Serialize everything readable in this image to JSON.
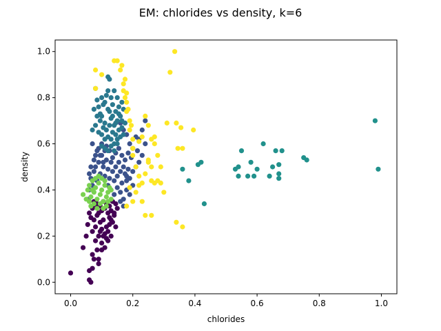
{
  "chart_data": {
    "type": "scatter",
    "title": "EM: chlorides vs density, k=6",
    "xlabel": "chlorides",
    "ylabel": "density",
    "xlim": [
      -0.05,
      1.05
    ],
    "ylim": [
      -0.05,
      1.05
    ],
    "xticks": [
      "0.0",
      "0.2",
      "0.4",
      "0.6",
      "0.8",
      "1.0"
    ],
    "yticks": [
      "0.0",
      "0.2",
      "0.4",
      "0.6",
      "0.8",
      "1.0"
    ],
    "grid": false,
    "legend": "none",
    "series": [
      {
        "color": "#440154",
        "points": [
          [
            0.0,
            0.04
          ],
          [
            0.04,
            0.15
          ],
          [
            0.05,
            0.2
          ],
          [
            0.055,
            0.25
          ],
          [
            0.06,
            0.05
          ],
          [
            0.06,
            0.01
          ],
          [
            0.065,
            0.0
          ],
          [
            0.07,
            0.06
          ],
          [
            0.07,
            0.12
          ],
          [
            0.075,
            0.1
          ],
          [
            0.08,
            0.18
          ],
          [
            0.085,
            0.14
          ],
          [
            0.09,
            0.1
          ],
          [
            0.09,
            0.08
          ],
          [
            0.095,
            0.22
          ],
          [
            0.1,
            0.17
          ],
          [
            0.1,
            0.14
          ],
          [
            0.105,
            0.2
          ],
          [
            0.11,
            0.15
          ],
          [
            0.115,
            0.19
          ],
          [
            0.12,
            0.18
          ],
          [
            0.125,
            0.25
          ],
          [
            0.13,
            0.2
          ],
          [
            0.06,
            0.3
          ],
          [
            0.065,
            0.28
          ],
          [
            0.07,
            0.32
          ],
          [
            0.075,
            0.27
          ],
          [
            0.08,
            0.33
          ],
          [
            0.085,
            0.29
          ],
          [
            0.09,
            0.3
          ],
          [
            0.095,
            0.26
          ],
          [
            0.1,
            0.31
          ],
          [
            0.105,
            0.27
          ],
          [
            0.11,
            0.32
          ],
          [
            0.115,
            0.24
          ],
          [
            0.12,
            0.3
          ],
          [
            0.125,
            0.28
          ],
          [
            0.13,
            0.31
          ],
          [
            0.135,
            0.26
          ],
          [
            0.14,
            0.29
          ],
          [
            0.145,
            0.24
          ],
          [
            0.07,
            0.22
          ],
          [
            0.08,
            0.24
          ],
          [
            0.09,
            0.2
          ],
          [
            0.1,
            0.23
          ],
          [
            0.11,
            0.21
          ],
          [
            0.12,
            0.22
          ],
          [
            0.13,
            0.27
          ],
          [
            0.14,
            0.3
          ],
          [
            0.15,
            0.32
          ],
          [
            0.075,
            0.35
          ],
          [
            0.085,
            0.34
          ],
          [
            0.095,
            0.33
          ],
          [
            0.105,
            0.35
          ],
          [
            0.115,
            0.34
          ],
          [
            0.125,
            0.33
          ],
          [
            0.135,
            0.35
          ],
          [
            0.145,
            0.34
          ]
        ]
      },
      {
        "color": "#3b528b",
        "points": [
          [
            0.065,
            0.45
          ],
          [
            0.07,
            0.42
          ],
          [
            0.075,
            0.48
          ],
          [
            0.08,
            0.5
          ],
          [
            0.085,
            0.44
          ],
          [
            0.09,
            0.52
          ],
          [
            0.095,
            0.47
          ],
          [
            0.1,
            0.55
          ],
          [
            0.105,
            0.5
          ],
          [
            0.11,
            0.46
          ],
          [
            0.115,
            0.53
          ],
          [
            0.12,
            0.49
          ],
          [
            0.125,
            0.45
          ],
          [
            0.13,
            0.52
          ],
          [
            0.135,
            0.48
          ],
          [
            0.14,
            0.44
          ],
          [
            0.145,
            0.5
          ],
          [
            0.15,
            0.46
          ],
          [
            0.155,
            0.52
          ],
          [
            0.16,
            0.48
          ],
          [
            0.165,
            0.43
          ],
          [
            0.17,
            0.5
          ],
          [
            0.175,
            0.47
          ],
          [
            0.18,
            0.44
          ],
          [
            0.185,
            0.49
          ],
          [
            0.19,
            0.45
          ],
          [
            0.07,
            0.6
          ],
          [
            0.08,
            0.55
          ],
          [
            0.09,
            0.58
          ],
          [
            0.1,
            0.6
          ],
          [
            0.11,
            0.57
          ],
          [
            0.12,
            0.42
          ],
          [
            0.13,
            0.4
          ],
          [
            0.14,
            0.38
          ],
          [
            0.15,
            0.41
          ],
          [
            0.16,
            0.39
          ],
          [
            0.17,
            0.36
          ],
          [
            0.18,
            0.4
          ],
          [
            0.19,
            0.38
          ],
          [
            0.2,
            0.42
          ],
          [
            0.17,
            0.33
          ],
          [
            0.16,
            0.35
          ],
          [
            0.18,
            0.46
          ],
          [
            0.2,
            0.48
          ],
          [
            0.21,
            0.5
          ],
          [
            0.22,
            0.52
          ],
          [
            0.23,
            0.55
          ],
          [
            0.24,
            0.6
          ],
          [
            0.22,
            0.62
          ],
          [
            0.215,
            0.57
          ],
          [
            0.2,
            0.58
          ],
          [
            0.195,
            0.54
          ],
          [
            0.185,
            0.56
          ],
          [
            0.175,
            0.53
          ],
          [
            0.165,
            0.55
          ],
          [
            0.155,
            0.58
          ],
          [
            0.145,
            0.56
          ],
          [
            0.135,
            0.54
          ],
          [
            0.125,
            0.57
          ],
          [
            0.115,
            0.59
          ],
          [
            0.105,
            0.52
          ],
          [
            0.095,
            0.55
          ],
          [
            0.085,
            0.57
          ],
          [
            0.075,
            0.53
          ],
          [
            0.065,
            0.5
          ],
          [
            0.06,
            0.47
          ],
          [
            0.06,
            0.4
          ],
          [
            0.058,
            0.36
          ],
          [
            0.19,
            0.6
          ],
          [
            0.21,
            0.63
          ],
          [
            0.23,
            0.66
          ],
          [
            0.24,
            0.7
          ],
          [
            0.18,
            0.64
          ],
          [
            0.17,
            0.66
          ],
          [
            0.16,
            0.69
          ]
        ]
      },
      {
        "color": "#21918c",
        "points": [
          [
            0.36,
            0.49
          ],
          [
            0.38,
            0.44
          ],
          [
            0.41,
            0.51
          ],
          [
            0.42,
            0.52
          ],
          [
            0.43,
            0.34
          ],
          [
            0.53,
            0.49
          ],
          [
            0.54,
            0.5
          ],
          [
            0.55,
            0.57
          ],
          [
            0.57,
            0.46
          ],
          [
            0.58,
            0.52
          ],
          [
            0.59,
            0.46
          ],
          [
            0.6,
            0.49
          ],
          [
            0.62,
            0.6
          ],
          [
            0.64,
            0.46
          ],
          [
            0.65,
            0.5
          ],
          [
            0.66,
            0.57
          ],
          [
            0.67,
            0.51
          ],
          [
            0.67,
            0.45
          ],
          [
            0.68,
            0.57
          ],
          [
            0.75,
            0.54
          ],
          [
            0.76,
            0.53
          ],
          [
            0.98,
            0.7
          ],
          [
            0.99,
            0.49
          ],
          [
            0.54,
            0.46
          ],
          [
            0.67,
            0.47
          ]
        ]
      },
      {
        "color": "#2a788e",
        "points": [
          [
            0.08,
            0.84
          ],
          [
            0.09,
            0.76
          ],
          [
            0.1,
            0.8
          ],
          [
            0.1,
            0.72
          ],
          [
            0.11,
            0.78
          ],
          [
            0.11,
            0.69
          ],
          [
            0.12,
            0.89
          ],
          [
            0.12,
            0.83
          ],
          [
            0.12,
            0.75
          ],
          [
            0.125,
            0.88
          ],
          [
            0.13,
            0.8
          ],
          [
            0.13,
            0.71
          ],
          [
            0.135,
            0.77
          ],
          [
            0.14,
            0.83
          ],
          [
            0.14,
            0.68
          ],
          [
            0.145,
            0.74
          ],
          [
            0.15,
            0.8
          ],
          [
            0.15,
            0.7
          ],
          [
            0.155,
            0.76
          ],
          [
            0.16,
            0.72
          ],
          [
            0.165,
            0.78
          ],
          [
            0.17,
            0.75
          ],
          [
            0.08,
            0.68
          ],
          [
            0.085,
            0.72
          ],
          [
            0.09,
            0.65
          ],
          [
            0.095,
            0.7
          ],
          [
            0.1,
            0.64
          ],
          [
            0.105,
            0.67
          ],
          [
            0.11,
            0.62
          ],
          [
            0.115,
            0.66
          ],
          [
            0.12,
            0.63
          ],
          [
            0.125,
            0.68
          ],
          [
            0.13,
            0.62
          ],
          [
            0.135,
            0.65
          ],
          [
            0.14,
            0.6
          ],
          [
            0.145,
            0.64
          ],
          [
            0.15,
            0.62
          ],
          [
            0.155,
            0.66
          ],
          [
            0.16,
            0.63
          ],
          [
            0.165,
            0.67
          ],
          [
            0.17,
            0.64
          ],
          [
            0.175,
            0.69
          ],
          [
            0.075,
            0.75
          ],
          [
            0.07,
            0.66
          ],
          [
            0.085,
            0.79
          ],
          [
            0.095,
            0.73
          ],
          [
            0.105,
            0.77
          ],
          [
            0.115,
            0.81
          ],
          [
            0.125,
            0.74
          ],
          [
            0.135,
            0.72
          ],
          [
            0.145,
            0.69
          ],
          [
            0.155,
            0.73
          ],
          [
            0.165,
            0.7
          ],
          [
            0.11,
            0.58
          ],
          [
            0.12,
            0.57
          ],
          [
            0.13,
            0.59
          ],
          [
            0.14,
            0.57
          ],
          [
            0.15,
            0.6
          ],
          [
            0.1,
            0.59
          ]
        ]
      },
      {
        "color": "#7ad151",
        "points": [
          [
            0.04,
            0.38
          ],
          [
            0.05,
            0.36
          ],
          [
            0.055,
            0.4
          ],
          [
            0.06,
            0.42
          ],
          [
            0.065,
            0.37
          ],
          [
            0.07,
            0.44
          ],
          [
            0.075,
            0.39
          ],
          [
            0.08,
            0.41
          ],
          [
            0.085,
            0.36
          ],
          [
            0.09,
            0.43
          ],
          [
            0.095,
            0.38
          ],
          [
            0.1,
            0.4
          ],
          [
            0.105,
            0.35
          ],
          [
            0.11,
            0.42
          ],
          [
            0.115,
            0.37
          ],
          [
            0.12,
            0.39
          ],
          [
            0.125,
            0.41
          ],
          [
            0.13,
            0.36
          ],
          [
            0.065,
            0.33
          ],
          [
            0.075,
            0.34
          ],
          [
            0.085,
            0.32
          ],
          [
            0.095,
            0.34
          ],
          [
            0.105,
            0.32
          ],
          [
            0.115,
            0.33
          ],
          [
            0.08,
            0.45
          ],
          [
            0.09,
            0.46
          ],
          [
            0.1,
            0.45
          ],
          [
            0.11,
            0.44
          ],
          [
            0.07,
            0.4
          ],
          [
            0.06,
            0.35
          ],
          [
            0.12,
            0.35
          ],
          [
            0.13,
            0.4
          ]
        ]
      },
      {
        "color": "#fde725",
        "points": [
          [
            0.08,
            0.92
          ],
          [
            0.08,
            0.84
          ],
          [
            0.1,
            0.9
          ],
          [
            0.14,
            0.96
          ],
          [
            0.15,
            0.96
          ],
          [
            0.16,
            0.92
          ],
          [
            0.165,
            0.94
          ],
          [
            0.17,
            0.86
          ],
          [
            0.175,
            0.88
          ],
          [
            0.18,
            0.82
          ],
          [
            0.18,
            0.78
          ],
          [
            0.18,
            0.74
          ],
          [
            0.19,
            0.7
          ],
          [
            0.19,
            0.66
          ],
          [
            0.2,
            0.62
          ],
          [
            0.2,
            0.58
          ],
          [
            0.17,
            0.83
          ],
          [
            0.175,
            0.8
          ],
          [
            0.185,
            0.75
          ],
          [
            0.195,
            0.68
          ],
          [
            0.2,
            0.55
          ],
          [
            0.21,
            0.5
          ],
          [
            0.22,
            0.46
          ],
          [
            0.23,
            0.43
          ],
          [
            0.22,
            0.61
          ],
          [
            0.23,
            0.63
          ],
          [
            0.24,
            0.72
          ],
          [
            0.25,
            0.68
          ],
          [
            0.26,
            0.62
          ],
          [
            0.27,
            0.63
          ],
          [
            0.27,
            0.6
          ],
          [
            0.28,
            0.55
          ],
          [
            0.29,
            0.5
          ],
          [
            0.25,
            0.53
          ],
          [
            0.26,
            0.5
          ],
          [
            0.24,
            0.47
          ],
          [
            0.25,
            0.52
          ],
          [
            0.26,
            0.44
          ],
          [
            0.27,
            0.43
          ],
          [
            0.28,
            0.44
          ],
          [
            0.29,
            0.43
          ],
          [
            0.3,
            0.39
          ],
          [
            0.31,
            0.69
          ],
          [
            0.32,
            0.91
          ],
          [
            0.335,
            1.0
          ],
          [
            0.34,
            0.69
          ],
          [
            0.345,
            0.58
          ],
          [
            0.355,
            0.67
          ],
          [
            0.36,
            0.58
          ],
          [
            0.36,
            0.24
          ],
          [
            0.34,
            0.26
          ],
          [
            0.395,
            0.66
          ],
          [
            0.24,
            0.29
          ],
          [
            0.26,
            0.29
          ],
          [
            0.23,
            0.35
          ],
          [
            0.2,
            0.35
          ],
          [
            0.18,
            0.33
          ],
          [
            0.19,
            0.41
          ],
          [
            0.21,
            0.39
          ],
          [
            0.22,
            0.42
          ]
        ]
      }
    ]
  }
}
